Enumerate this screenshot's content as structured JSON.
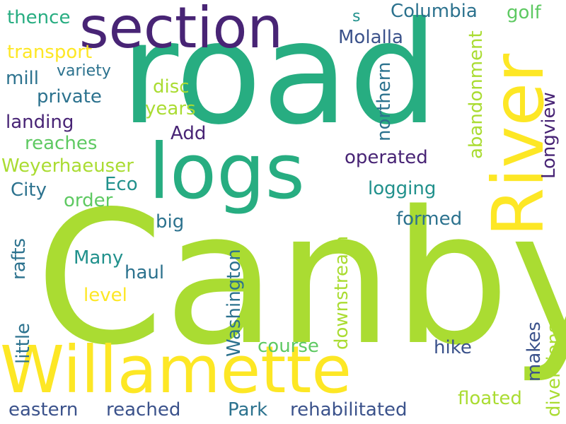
{
  "palette": {
    "dark_purple": "#482475",
    "indigo": "#3b528b",
    "blue": "#2c728e",
    "teal": "#21918c",
    "green": "#27ad81",
    "light_green": "#5ec962",
    "lime": "#aadc32",
    "yellow": "#fde725"
  },
  "words": [
    {
      "text": "road",
      "color": "#27ad81",
      "vertical": false
    },
    {
      "text": "Canby",
      "color": "#aadc32",
      "vertical": false
    },
    {
      "text": "section",
      "color": "#482475",
      "vertical": false
    },
    {
      "text": "logs",
      "color": "#27ad81",
      "vertical": false
    },
    {
      "text": "River",
      "color": "#fde725",
      "vertical": true
    },
    {
      "text": "Willamette",
      "color": "#fde725",
      "vertical": false
    },
    {
      "text": "thence",
      "color": "#27ad81",
      "vertical": false
    },
    {
      "text": "s",
      "color": "#21918c",
      "vertical": false
    },
    {
      "text": "Columbia",
      "color": "#2c728e",
      "vertical": false
    },
    {
      "text": "golf",
      "color": "#5ec962",
      "vertical": false
    },
    {
      "text": "Molalla",
      "color": "#3b528b",
      "vertical": false
    },
    {
      "text": "abandonment",
      "color": "#aadc32",
      "vertical": true
    },
    {
      "text": "transport",
      "color": "#fde725",
      "vertical": false
    },
    {
      "text": "mill",
      "color": "#2c728e",
      "vertical": false
    },
    {
      "text": "variety",
      "color": "#2c728e",
      "vertical": false
    },
    {
      "text": "disc",
      "color": "#aadc32",
      "vertical": false
    },
    {
      "text": "private",
      "color": "#2c728e",
      "vertical": false
    },
    {
      "text": "northern",
      "color": "#2c728e",
      "vertical": true
    },
    {
      "text": "years",
      "color": "#aadc32",
      "vertical": false
    },
    {
      "text": "Longview",
      "color": "#482475",
      "vertical": true
    },
    {
      "text": "landing",
      "color": "#482475",
      "vertical": false
    },
    {
      "text": "Add",
      "color": "#482475",
      "vertical": false
    },
    {
      "text": "reaches",
      "color": "#5ec962",
      "vertical": false
    },
    {
      "text": "operated",
      "color": "#482475",
      "vertical": false
    },
    {
      "text": "Weyerhaeuser",
      "color": "#aadc32",
      "vertical": false
    },
    {
      "text": "City",
      "color": "#2c728e",
      "vertical": false
    },
    {
      "text": "Eco",
      "color": "#21918c",
      "vertical": false
    },
    {
      "text": "logging",
      "color": "#21918c",
      "vertical": false
    },
    {
      "text": "order",
      "color": "#5ec962",
      "vertical": false
    },
    {
      "text": "big",
      "color": "#2c728e",
      "vertical": false
    },
    {
      "text": "formed",
      "color": "#2c728e",
      "vertical": false
    },
    {
      "text": "rafts",
      "color": "#2c728e",
      "vertical": true
    },
    {
      "text": "downstream",
      "color": "#aadc32",
      "vertical": true
    },
    {
      "text": "Washington",
      "color": "#2c728e",
      "vertical": true
    },
    {
      "text": "Many",
      "color": "#21918c",
      "vertical": false
    },
    {
      "text": "haul",
      "color": "#2c728e",
      "vertical": false
    },
    {
      "text": "level",
      "color": "#fde725",
      "vertical": false
    },
    {
      "text": "little",
      "color": "#2c728e",
      "vertical": true
    },
    {
      "text": "makes",
      "color": "#3b528b",
      "vertical": true
    },
    {
      "text": "diversions",
      "color": "#aadc32",
      "vertical": true
    },
    {
      "text": "course",
      "color": "#5ec962",
      "vertical": false
    },
    {
      "text": "hike",
      "color": "#3b528b",
      "vertical": false
    },
    {
      "text": "floated",
      "color": "#aadc32",
      "vertical": false
    },
    {
      "text": "eastern",
      "color": "#3b528b",
      "vertical": false
    },
    {
      "text": "reached",
      "color": "#3b528b",
      "vertical": false
    },
    {
      "text": "Park",
      "color": "#2c728e",
      "vertical": false
    },
    {
      "text": "rehabilitated",
      "color": "#3b528b",
      "vertical": false
    }
  ]
}
